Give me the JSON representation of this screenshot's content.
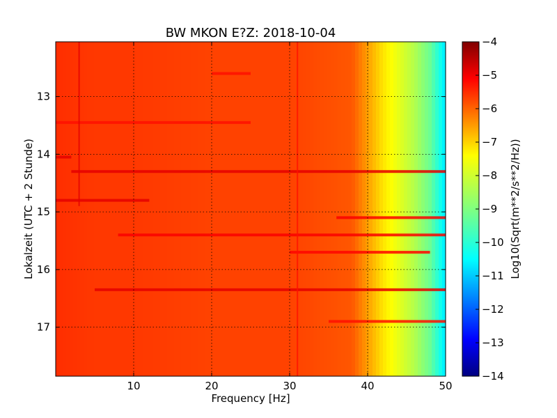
{
  "chart_data": {
    "type": "heatmap",
    "title": "BW MKON E?Z: 2018-10-04",
    "xlabel": "Frequency [Hz]",
    "ylabel": "Lokalzeit (UTC + 2 Stunde)",
    "colorbar_label": "Log10(Sqrt(m**2/s**2/Hz))",
    "colormap": "jet",
    "grid": true,
    "xlim": [
      0,
      50
    ],
    "ylim": [
      17.85,
      12.05
    ],
    "x_ticks": [
      10,
      20,
      30,
      40,
      50
    ],
    "y_ticks": [
      13,
      14,
      15,
      16,
      17
    ],
    "x_tick_labels": [
      "10",
      "20",
      "30",
      "40",
      "50"
    ],
    "y_tick_labels": [
      "13",
      "14",
      "15",
      "16",
      "17"
    ],
    "clim": [
      -14,
      -4
    ],
    "colorbar_ticks": [
      -4,
      -5,
      -6,
      -7,
      -8,
      -9,
      -10,
      -11,
      -12,
      -13,
      -14
    ],
    "colorbar_tick_labels": [
      "−4",
      "−5",
      "−6",
      "−7",
      "−8",
      "−9",
      "−10",
      "−11",
      "−12",
      "−13",
      "−14"
    ],
    "spectral_profile": {
      "frequency_hz": [
        0,
        5,
        10,
        20,
        30,
        38,
        40,
        42,
        44,
        46,
        48,
        50
      ],
      "log10_amplitude": [
        -5.7,
        -5.8,
        -5.8,
        -5.9,
        -5.9,
        -6.1,
        -6.8,
        -7.5,
        -8.0,
        -8.5,
        -9.2,
        -10.5
      ]
    },
    "horizontal_features": [
      {
        "time_h": 12.6,
        "freq_range_hz": [
          20,
          25
        ],
        "log10_amplitude": -5.4
      },
      {
        "time_h": 13.45,
        "freq_range_hz": [
          0,
          25
        ],
        "log10_amplitude": -5.4
      },
      {
        "time_h": 14.05,
        "freq_range_hz": [
          0,
          2
        ],
        "log10_amplitude": -5.0
      },
      {
        "time_h": 14.3,
        "freq_range_hz": [
          2,
          50
        ],
        "log10_amplitude": -5.0
      },
      {
        "time_h": 14.8,
        "freq_range_hz": [
          0,
          12
        ],
        "log10_amplitude": -5.0
      },
      {
        "time_h": 15.1,
        "freq_range_hz": [
          36,
          50
        ],
        "log10_amplitude": -5.2
      },
      {
        "time_h": 15.4,
        "freq_range_hz": [
          8,
          50
        ],
        "log10_amplitude": -5.2
      },
      {
        "time_h": 15.7,
        "freq_range_hz": [
          30,
          48
        ],
        "log10_amplitude": -5.3
      },
      {
        "time_h": 16.35,
        "freq_range_hz": [
          5,
          50
        ],
        "log10_amplitude": -5.0
      },
      {
        "time_h": 16.9,
        "freq_range_hz": [
          35,
          50
        ],
        "log10_amplitude": -5.4
      }
    ],
    "vertical_features": [
      {
        "freq_hz": 3.0,
        "time_range_h": [
          12.05,
          14.9
        ],
        "log10_amplitude": -5.0
      },
      {
        "freq_hz": 31.0,
        "time_range_h": [
          12.05,
          17.85
        ],
        "log10_amplitude": -5.4
      }
    ]
  }
}
